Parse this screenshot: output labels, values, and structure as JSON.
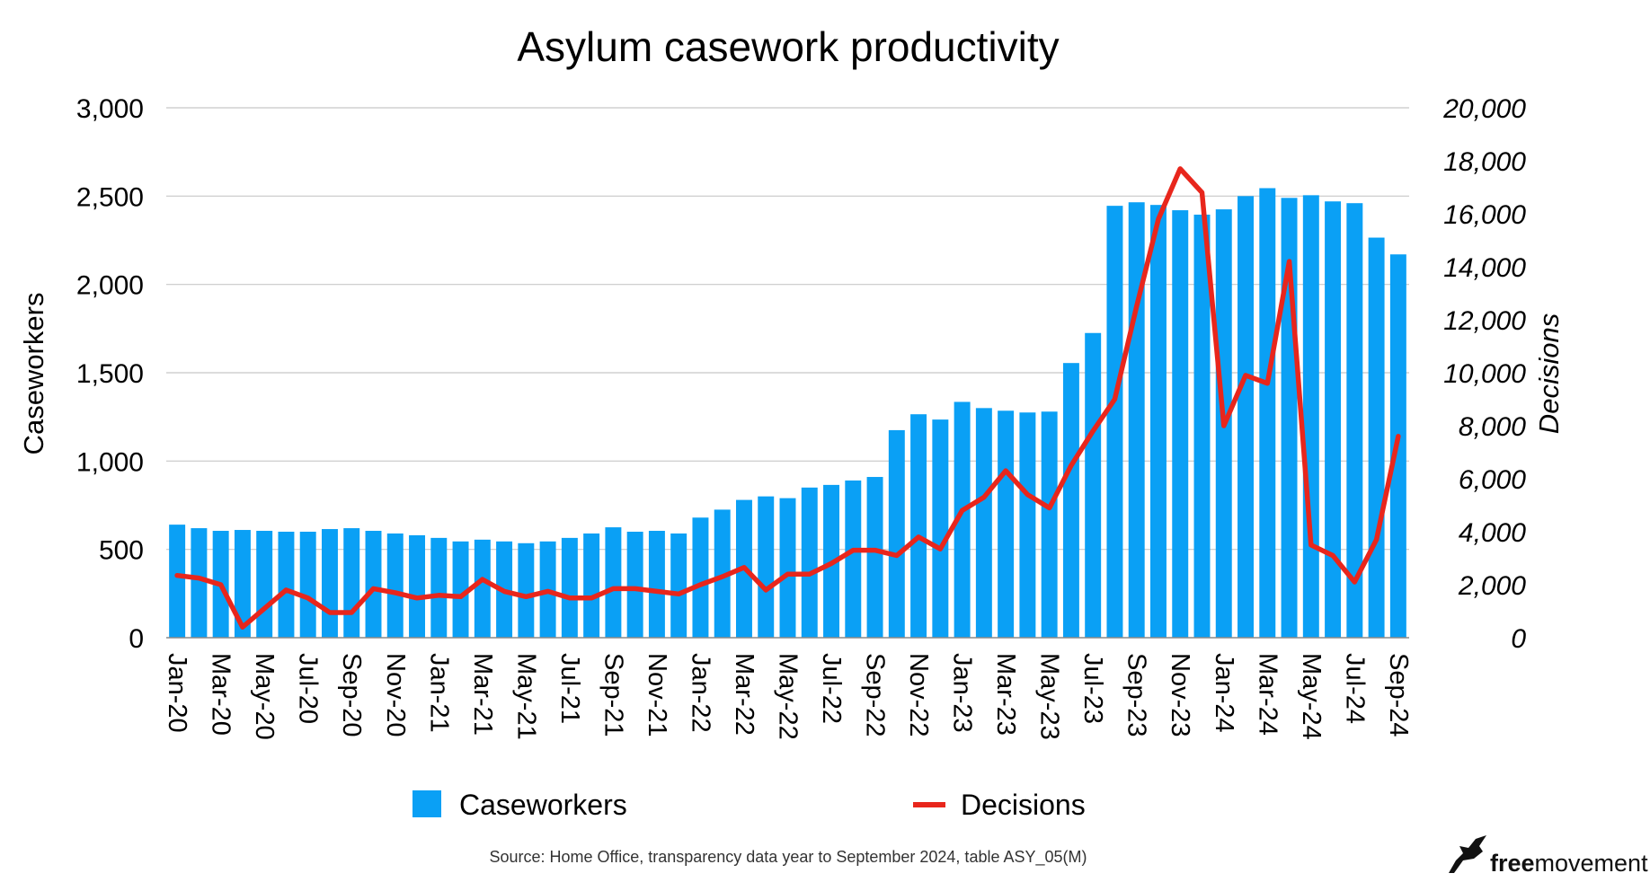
{
  "chart_data": {
    "type": "bar",
    "title": "Asylum casework productivity",
    "categories": [
      "Jan-20",
      "Feb-20",
      "Mar-20",
      "Apr-20",
      "May-20",
      "Jun-20",
      "Jul-20",
      "Aug-20",
      "Sep-20",
      "Oct-20",
      "Nov-20",
      "Dec-20",
      "Jan-21",
      "Feb-21",
      "Mar-21",
      "Apr-21",
      "May-21",
      "Jun-21",
      "Jul-21",
      "Aug-21",
      "Sep-21",
      "Oct-21",
      "Nov-21",
      "Dec-21",
      "Jan-22",
      "Feb-22",
      "Mar-22",
      "Apr-22",
      "May-22",
      "Jun-22",
      "Jul-22",
      "Aug-22",
      "Sep-22",
      "Oct-22",
      "Nov-22",
      "Dec-22",
      "Jan-23",
      "Feb-23",
      "Mar-23",
      "Apr-23",
      "May-23",
      "Jun-23",
      "Jul-23",
      "Aug-23",
      "Sep-23",
      "Oct-23",
      "Nov-23",
      "Dec-23",
      "Jan-24",
      "Feb-24",
      "Mar-24",
      "Apr-24",
      "May-24",
      "Jun-24",
      "Jul-24",
      "Aug-24",
      "Sep-24"
    ],
    "x_tick_labels": [
      "Jan-20",
      "",
      "Mar-20",
      "",
      "May-20",
      "",
      "Jul-20",
      "",
      "Sep-20",
      "",
      "Nov-20",
      "",
      "Jan-21",
      "",
      "Mar-21",
      "",
      "May-21",
      "",
      "Jul-21",
      "",
      "Sep-21",
      "",
      "Nov-21",
      "",
      "Jan-22",
      "",
      "Mar-22",
      "",
      "May-22",
      "",
      "Jul-22",
      "",
      "Sep-22",
      "",
      "Nov-22",
      "",
      "Jan-23",
      "",
      "Mar-23",
      "",
      "May-23",
      "",
      "Jul-23",
      "",
      "Sep-23",
      "",
      "Nov-23",
      "",
      "Jan-24",
      "",
      "Mar-24",
      "",
      "May-24",
      "",
      "Jul-24",
      "",
      "Sep-24"
    ],
    "series": [
      {
        "name": "Caseworkers",
        "type": "bar",
        "axis": "left",
        "color": "#0aa0f5",
        "values": [
          640,
          620,
          605,
          610,
          605,
          600,
          600,
          615,
          620,
          605,
          590,
          580,
          565,
          545,
          555,
          545,
          535,
          545,
          565,
          590,
          625,
          600,
          605,
          590,
          680,
          725,
          780,
          800,
          790,
          850,
          865,
          890,
          910,
          1175,
          1265,
          1235,
          1335,
          1300,
          1285,
          1275,
          1280,
          1555,
          1725,
          2445,
          2465,
          2450,
          2420,
          2395,
          2425,
          2500,
          2545,
          2490,
          2505,
          2470,
          2460,
          2265,
          2170
        ]
      },
      {
        "name": "Decisions",
        "type": "line",
        "axis": "right",
        "color": "#e8261c",
        "values": [
          2350,
          2250,
          2000,
          400,
          1100,
          1800,
          1500,
          950,
          950,
          1850,
          1700,
          1500,
          1600,
          1550,
          2200,
          1750,
          1550,
          1750,
          1500,
          1500,
          1850,
          1850,
          1750,
          1650,
          2000,
          2300,
          2650,
          1800,
          2400,
          2400,
          2800,
          3300,
          3300,
          3100,
          3800,
          3350,
          4800,
          5300,
          6300,
          5400,
          4900,
          6500,
          7800,
          9000,
          12500,
          15800,
          17700,
          16800,
          8000,
          9900,
          9600,
          14200,
          3500,
          3100,
          2100,
          3700,
          7600
        ]
      }
    ],
    "ylabel": "Caseworkers",
    "ylabel_right": "Decisions",
    "ylim": [
      0,
      3000
    ],
    "ylim_right": [
      0,
      20000
    ],
    "y_ticks": [
      "0",
      "500",
      "1,000",
      "1,500",
      "2,000",
      "2,500",
      "3,000"
    ],
    "y_ticks_right": [
      "0",
      "2,000",
      "4,000",
      "6,000",
      "8,000",
      "10,000",
      "12,000",
      "14,000",
      "16,000",
      "18,000",
      "20,000"
    ],
    "grid": true,
    "legend_position": "bottom",
    "source": "Source: Home Office, transparency data year to September 2024, table ASY_05(M)"
  },
  "brand": {
    "prefix": "free",
    "suffix": "movement",
    "logo_icon": "bird-icon"
  }
}
